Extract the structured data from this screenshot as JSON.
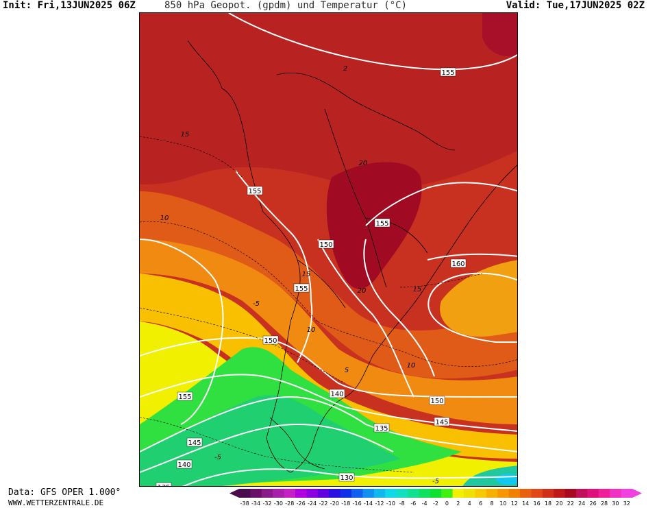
{
  "header": {
    "init": "Init: Fri,13JUN2025 06Z",
    "title": "850 hPa Geopot. (gpdm) und Temperatur (°C)",
    "valid": "Valid: Tue,17JUN2025 02Z"
  },
  "footer": {
    "data_source": "Data: GFS OPER 1.000°",
    "website": "WWW.WETTERZENTRALE.DE"
  },
  "colorbar": {
    "ticks": [
      "-38",
      "-34",
      "-32",
      "-30",
      "-28",
      "-26",
      "-24",
      "-22",
      "-20",
      "-18",
      "-16",
      "-14",
      "-12",
      "-10",
      "-8",
      "-6",
      "-4",
      "-2",
      "0",
      "2",
      "4",
      "6",
      "8",
      "10",
      "12",
      "14",
      "16",
      "18",
      "20",
      "22",
      "24",
      "26",
      "28",
      "30",
      "32"
    ],
    "colors": [
      "#4b0a4b",
      "#6a0f6a",
      "#8a1a8a",
      "#a91fa9",
      "#c51fc5",
      "#b000e0",
      "#8a00e0",
      "#6000e0",
      "#2a10e0",
      "#1030e8",
      "#1060f0",
      "#1090f0",
      "#10b8f0",
      "#10d8e8",
      "#10e0c0",
      "#10e090",
      "#10e060",
      "#10e030",
      "#40f010",
      "#f0f000",
      "#f0e000",
      "#f8c800",
      "#f8b000",
      "#f89800",
      "#f08000",
      "#e86010",
      "#e04818",
      "#d03018",
      "#c01818",
      "#a80820",
      "#c0105a",
      "#e0107a",
      "#f0209a",
      "#f030c0",
      "#f040e0"
    ]
  },
  "map": {
    "geopotential_labels_gpdm": [
      {
        "text": "155",
        "name": "isohypse-155-north"
      },
      {
        "text": "155",
        "name": "isohypse-155-peru"
      },
      {
        "text": "155",
        "name": "isohypse-155-paraguay"
      },
      {
        "text": "150",
        "name": "isohypse-150-north"
      },
      {
        "text": "155",
        "name": "isohypse-155-andes"
      },
      {
        "text": "160",
        "name": "isohypse-160-atlantic"
      },
      {
        "text": "150",
        "name": "isohypse-150-chile"
      },
      {
        "text": "155",
        "name": "isohypse-155-pacific"
      },
      {
        "text": "140",
        "name": "isohypse-140-patagonia"
      },
      {
        "text": "150",
        "name": "isohypse-150-atlantic"
      },
      {
        "text": "145",
        "name": "isohypse-145-atlantic"
      },
      {
        "text": "135",
        "name": "isohypse-135"
      },
      {
        "text": "145",
        "name": "isohypse-145-pacific"
      },
      {
        "text": "140",
        "name": "isohypse-140-pacific"
      },
      {
        "text": "130",
        "name": "isohypse-130"
      },
      {
        "text": "135",
        "name": "isohypse-135-corner"
      }
    ],
    "temperature_labels_c": [
      {
        "text": "15",
        "name": "isotherm-15-pacific"
      },
      {
        "text": "10",
        "name": "isotherm-10-pacific"
      },
      {
        "text": "20",
        "name": "isotherm-20-bolivia"
      },
      {
        "text": "15",
        "name": "isotherm-15-andes"
      },
      {
        "text": "20",
        "name": "isotherm-20-paraguay"
      },
      {
        "text": "15",
        "name": "isotherm-15-brazil"
      },
      {
        "text": "-5",
        "name": "isotherm-minus5-pacific"
      },
      {
        "text": "10",
        "name": "isotherm-10-argentina"
      },
      {
        "text": "10",
        "name": "isotherm-10-atlantic"
      },
      {
        "text": "5",
        "name": "isotherm-5-argentina"
      },
      {
        "text": "-5",
        "name": "isotherm-minus5-south"
      },
      {
        "text": "-5",
        "name": "isotherm-minus5-bottom"
      },
      {
        "text": "2",
        "name": "isotherm-2-north"
      }
    ]
  }
}
